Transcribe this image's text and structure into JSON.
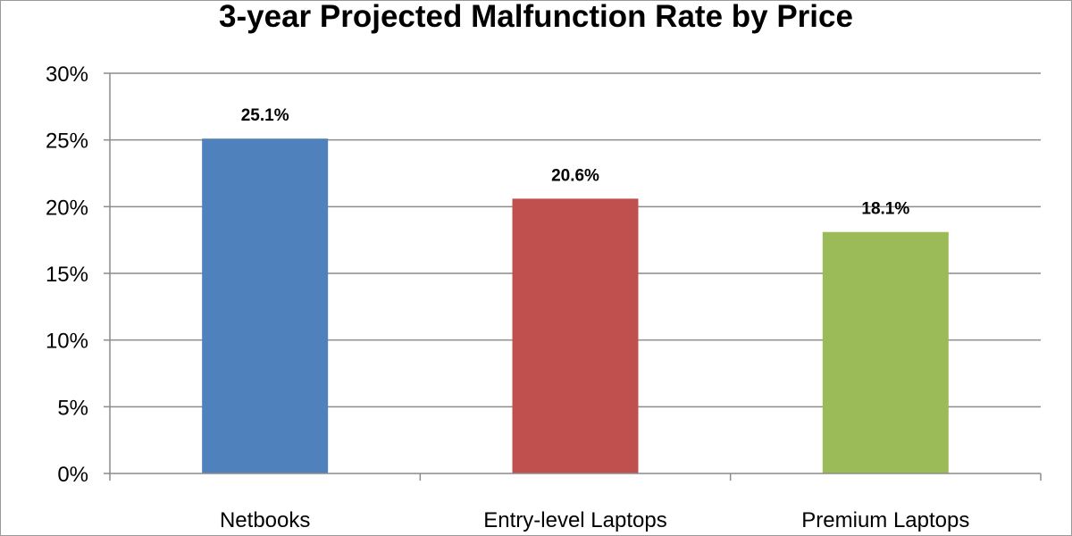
{
  "chart_data": {
    "type": "bar",
    "title": "3-year Projected Malfunction Rate by Price",
    "xlabel": "",
    "ylabel": "",
    "categories": [
      "Netbooks",
      "Entry-level Laptops",
      "Premium Laptops"
    ],
    "values": [
      25.1,
      20.6,
      18.1
    ],
    "data_labels": [
      "25.1%",
      "20.6%",
      "18.1%"
    ],
    "colors": [
      "#4f81bd",
      "#c0504d",
      "#9bbb59"
    ],
    "ylim": [
      0,
      30
    ],
    "yticks": [
      0,
      5,
      10,
      15,
      20,
      25,
      30
    ],
    "ytick_labels": [
      "0%",
      "5%",
      "10%",
      "15%",
      "20%",
      "25%",
      "30%"
    ],
    "grid": true,
    "legend": "none"
  }
}
